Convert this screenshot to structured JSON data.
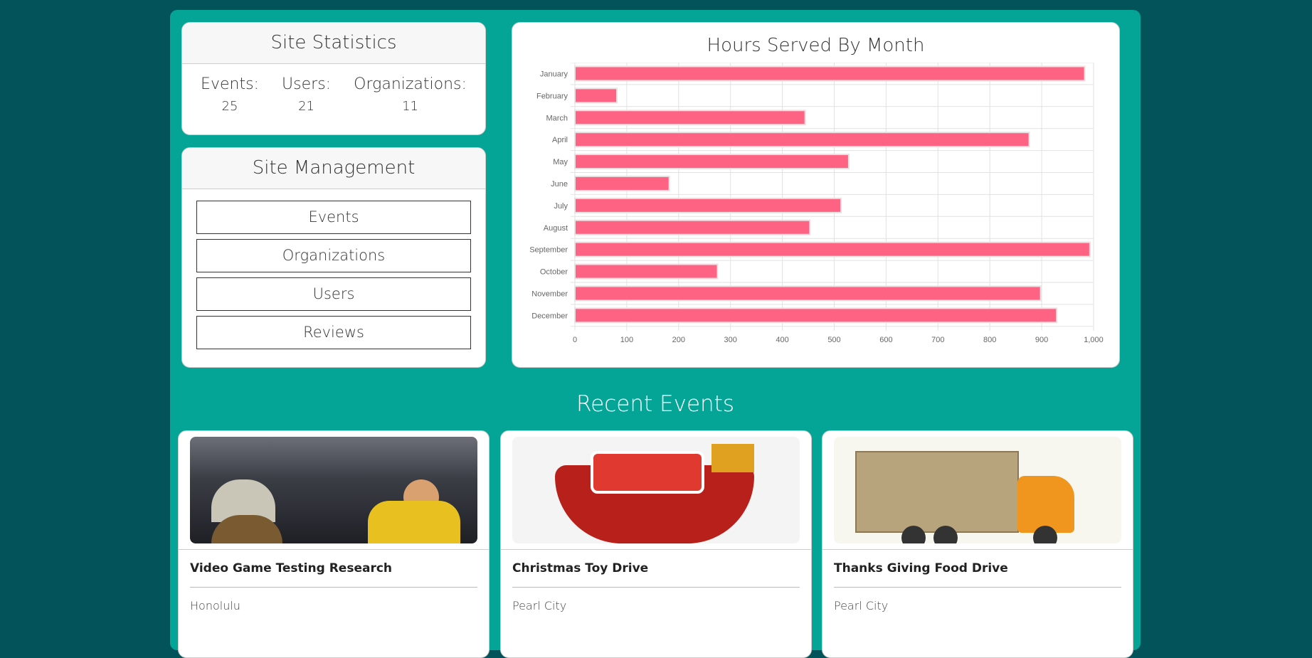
{
  "stats": {
    "title": "Site Statistics",
    "items": [
      {
        "label": "Events:",
        "value": "25"
      },
      {
        "label": "Users:",
        "value": "21"
      },
      {
        "label": "Organizations:",
        "value": "11"
      }
    ]
  },
  "management": {
    "title": "Site Management",
    "buttons": [
      "Events",
      "Organizations",
      "Users",
      "Reviews"
    ]
  },
  "chart_data": {
    "type": "bar",
    "orientation": "horizontal",
    "title": "Hours Served By Month",
    "categories": [
      "January",
      "February",
      "March",
      "April",
      "May",
      "June",
      "July",
      "August",
      "September",
      "October",
      "November",
      "December"
    ],
    "values": [
      983,
      81,
      444,
      876,
      528,
      182,
      513,
      453,
      993,
      275,
      898,
      929
    ],
    "xlim": [
      0,
      1000
    ],
    "xticks": [
      "0",
      "100",
      "200",
      "300",
      "400",
      "500",
      "600",
      "700",
      "800",
      "900",
      "1,000"
    ],
    "grid": true,
    "bar_color": "#ff6384",
    "xlabel": "",
    "ylabel": ""
  },
  "recent": {
    "title": "Recent Events",
    "events": [
      {
        "title": "Video Game Testing Research",
        "location": "Honolulu"
      },
      {
        "title": "Christmas Toy Drive",
        "location": "Pearl City"
      },
      {
        "title": "Thanks Giving Food Drive",
        "location": "Pearl City"
      }
    ]
  }
}
